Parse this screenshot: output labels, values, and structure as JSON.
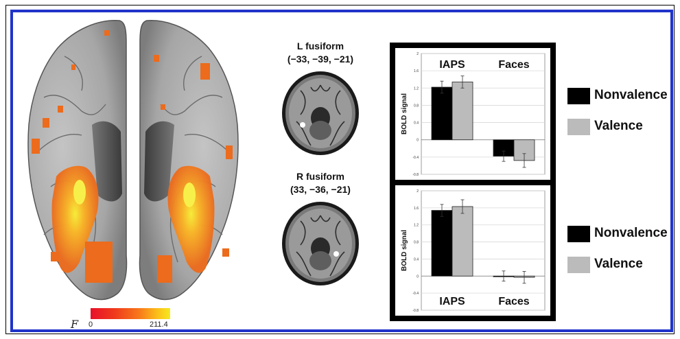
{
  "colorbar": {
    "symbol": "F",
    "min_label": "0",
    "max_label": "211.4",
    "colors": [
      "#e8102a",
      "#f7761a",
      "#f6e91e"
    ]
  },
  "slices": [
    {
      "title_line1": "L fusiform",
      "title_line2": "(−33, −39, −21)"
    },
    {
      "title_line1": "R fusiform",
      "title_line2": "(33, −36, −21)"
    }
  ],
  "legend": {
    "nonvalence_label": "Nonvalence",
    "valence_label": "Valence",
    "nonvalence_color": "#000000",
    "valence_color": "#bbbbbb"
  },
  "chart_data": [
    {
      "type": "bar",
      "categories": [
        "IAPS",
        "Faces"
      ],
      "series": [
        {
          "name": "Nonvalence",
          "values": [
            1.22,
            -0.38
          ],
          "errors": [
            0.14,
            0.12
          ],
          "color": "#000000"
        },
        {
          "name": "Valence",
          "values": [
            1.34,
            -0.48
          ],
          "errors": [
            0.14,
            0.16
          ],
          "color": "#bbbbbb"
        }
      ],
      "ylabel": "BOLD signal",
      "ylim": [
        -0.8,
        2
      ],
      "yticks": [
        "2",
        "1.6",
        "1.2",
        "0.8",
        "0.4",
        "0",
        "-0.4",
        "-0.8"
      ],
      "grid": true,
      "category_label_position": "top"
    },
    {
      "type": "bar",
      "categories": [
        "IAPS",
        "Faces"
      ],
      "series": [
        {
          "name": "Nonvalence",
          "values": [
            1.54,
            0.0
          ],
          "errors": [
            0.14,
            0.12
          ],
          "color": "#000000"
        },
        {
          "name": "Valence",
          "values": [
            1.63,
            -0.03
          ],
          "errors": [
            0.16,
            0.14
          ],
          "color": "#bbbbbb"
        }
      ],
      "ylabel": "BOLD signal",
      "ylim": [
        -0.8,
        2
      ],
      "yticks": [
        "2",
        "1.6",
        "1.2",
        "0.8",
        "0.4",
        "0",
        "-0.4",
        "-0.8"
      ],
      "grid": true,
      "category_label_position": "bottom"
    }
  ]
}
